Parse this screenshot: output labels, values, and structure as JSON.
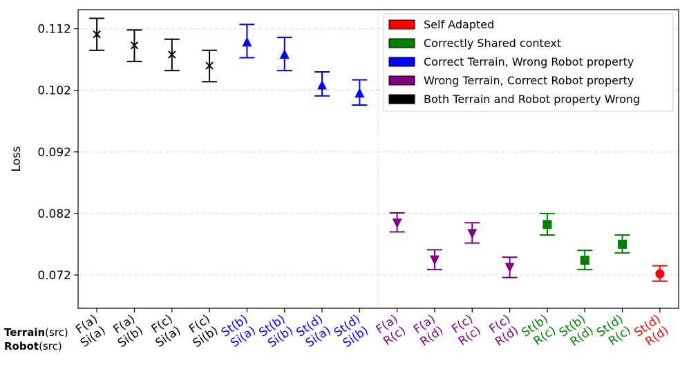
{
  "chart_data": {
    "type": "scatter",
    "ylabel": "Loss",
    "ylim": [
      0.0666,
      0.1151
    ],
    "yticks": [
      "0.072",
      "0.082",
      "0.092",
      "0.102",
      "0.112"
    ],
    "grid": "y-dashed",
    "legend_position": "top-right",
    "row_labels": [
      {
        "bold": "Terrain",
        "normal": "(src)"
      },
      {
        "bold": "Robot",
        "normal": "(src)"
      }
    ],
    "groups": [
      {
        "name": "Self Adapted",
        "color": "#ff0000",
        "marker": "circle"
      },
      {
        "name": "Correctly Shared context",
        "color": "#008000",
        "marker": "square"
      },
      {
        "name": "Correct Terrain, Wrong Robot property",
        "color": "#0000ff",
        "marker": "triangle-up"
      },
      {
        "name": "Wrong Terrain, Correct Robot property",
        "color": "#800080",
        "marker": "triangle-down"
      },
      {
        "name": "Both Terrain and Robot property Wrong",
        "color": "#000000",
        "marker": "x"
      }
    ],
    "points": [
      {
        "terrain": "F(a)",
        "robot": "Si(a)",
        "group": 4,
        "value": 0.1111,
        "err_low": 0.1085,
        "err_high": 0.1137
      },
      {
        "terrain": "F(a)",
        "robot": "Si(b)",
        "group": 4,
        "value": 0.1093,
        "err_low": 0.1067,
        "err_high": 0.1118
      },
      {
        "terrain": "F(c)",
        "robot": "Si(a)",
        "group": 4,
        "value": 0.1078,
        "err_low": 0.1052,
        "err_high": 0.1103
      },
      {
        "terrain": "F(c)",
        "robot": "Si(b)",
        "group": 4,
        "value": 0.106,
        "err_low": 0.1034,
        "err_high": 0.1085
      },
      {
        "terrain": "St(b)",
        "robot": "Si(a)",
        "group": 2,
        "value": 0.1098,
        "err_low": 0.1073,
        "err_high": 0.1127
      },
      {
        "terrain": "St(b)",
        "robot": "Si(b)",
        "group": 2,
        "value": 0.1078,
        "err_low": 0.1052,
        "err_high": 0.1106
      },
      {
        "terrain": "St(d)",
        "robot": "Si(a)",
        "group": 2,
        "value": 0.1028,
        "err_low": 0.1011,
        "err_high": 0.105
      },
      {
        "terrain": "St(d)",
        "robot": "Si(b)",
        "group": 2,
        "value": 0.1015,
        "err_low": 0.0996,
        "err_high": 0.1037
      },
      {
        "terrain": "F(a)",
        "robot": "R(c)",
        "group": 3,
        "value": 0.0805,
        "err_low": 0.079,
        "err_high": 0.0821
      },
      {
        "terrain": "F(a)",
        "robot": "R(d)",
        "group": 3,
        "value": 0.0745,
        "err_low": 0.0729,
        "err_high": 0.0761
      },
      {
        "terrain": "F(c)",
        "robot": "R(c)",
        "group": 3,
        "value": 0.0788,
        "err_low": 0.0772,
        "err_high": 0.0805
      },
      {
        "terrain": "F(c)",
        "robot": "R(d)",
        "group": 3,
        "value": 0.0733,
        "err_low": 0.0716,
        "err_high": 0.0749
      },
      {
        "terrain": "St(b)",
        "robot": "R(c)",
        "group": 1,
        "value": 0.0802,
        "err_low": 0.0785,
        "err_high": 0.082
      },
      {
        "terrain": "St(b)",
        "robot": "R(d)",
        "group": 1,
        "value": 0.0744,
        "err_low": 0.0729,
        "err_high": 0.076
      },
      {
        "terrain": "St(d)",
        "robot": "R(c)",
        "group": 1,
        "value": 0.077,
        "err_low": 0.0756,
        "err_high": 0.0785
      },
      {
        "terrain": "St(d)",
        "robot": "R(d)",
        "group": 0,
        "value": 0.0722,
        "err_low": 0.071,
        "err_high": 0.0735
      }
    ]
  }
}
